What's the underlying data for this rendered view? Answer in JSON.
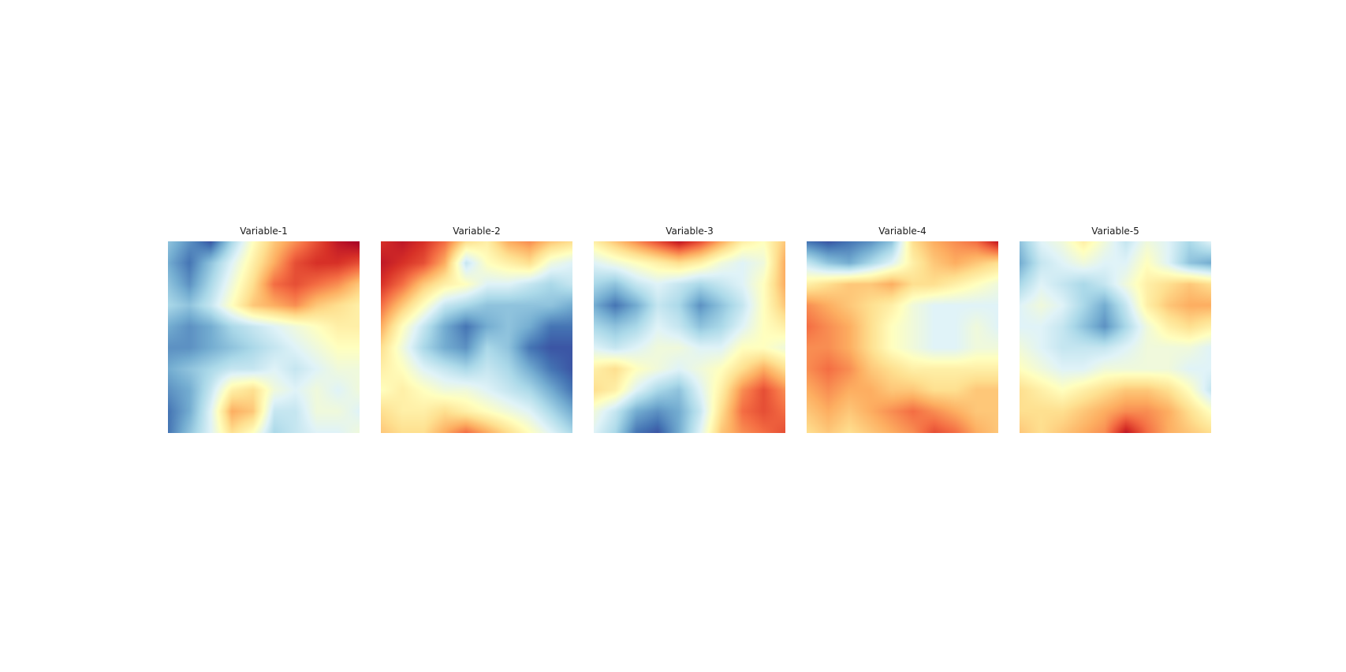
{
  "chart_data": {
    "type": "heatmap",
    "colormap": "RdYlBu_r",
    "axes_visible": false,
    "colorbar": false,
    "panels": [
      {
        "title": "Variable-1",
        "grid": [
          [
            -0.5,
            -0.7,
            -0.9,
            -0.4,
            0.0,
            0.3,
            0.5,
            0.7,
            0.9,
            1.0
          ],
          [
            -0.6,
            -0.8,
            -0.5,
            -0.2,
            0.1,
            0.4,
            0.7,
            0.8,
            0.8,
            0.7
          ],
          [
            -0.5,
            -0.7,
            -0.4,
            -0.1,
            0.2,
            0.6,
            0.7,
            0.6,
            0.5,
            0.3
          ],
          [
            -0.4,
            -0.5,
            -0.3,
            0.0,
            0.3,
            0.4,
            0.5,
            0.3,
            0.2,
            0.1
          ],
          [
            -0.6,
            -0.7,
            -0.6,
            -0.4,
            -0.3,
            -0.2,
            -0.1,
            0.0,
            0.1,
            0.1
          ],
          [
            -0.7,
            -0.7,
            -0.6,
            -0.5,
            -0.4,
            -0.3,
            -0.2,
            -0.1,
            0.0,
            0.0
          ],
          [
            -0.6,
            -0.5,
            -0.4,
            -0.3,
            -0.3,
            -0.2,
            -0.3,
            -0.2,
            -0.1,
            -0.1
          ],
          [
            -0.7,
            -0.6,
            -0.3,
            0.1,
            0.2,
            -0.1,
            -0.2,
            -0.1,
            -0.2,
            -0.1
          ],
          [
            -0.8,
            -0.6,
            -0.2,
            0.4,
            0.3,
            -0.3,
            -0.3,
            -0.1,
            -0.1,
            -0.2
          ],
          [
            -0.8,
            -0.5,
            -0.2,
            0.2,
            0.0,
            -0.4,
            -0.3,
            -0.2,
            -0.2,
            -0.1
          ]
        ]
      },
      {
        "title": "Variable-2",
        "grid": [
          [
            0.8,
            0.9,
            0.8,
            0.6,
            0.2,
            0.1,
            0.4,
            0.5,
            0.3,
            0.2
          ],
          [
            0.9,
            0.8,
            0.7,
            0.4,
            -0.3,
            0.0,
            0.1,
            0.2,
            -0.1,
            -0.2
          ],
          [
            0.8,
            0.6,
            0.3,
            0.1,
            0.0,
            -0.2,
            -0.2,
            -0.3,
            -0.4,
            -0.3
          ],
          [
            0.6,
            0.3,
            0.0,
            -0.3,
            -0.4,
            -0.5,
            -0.5,
            -0.5,
            -0.5,
            -0.6
          ],
          [
            0.4,
            0.0,
            -0.3,
            -0.6,
            -0.8,
            -0.6,
            -0.5,
            -0.6,
            -0.8,
            -0.8
          ],
          [
            0.2,
            -0.1,
            -0.4,
            -0.6,
            -0.7,
            -0.4,
            -0.5,
            -0.8,
            -0.9,
            -0.9
          ],
          [
            0.1,
            0.0,
            -0.2,
            -0.3,
            -0.4,
            -0.3,
            -0.4,
            -0.6,
            -0.8,
            -0.9
          ],
          [
            0.0,
            0.1,
            0.0,
            -0.1,
            -0.1,
            -0.2,
            -0.3,
            -0.4,
            -0.6,
            -0.8
          ],
          [
            0.2,
            0.1,
            0.1,
            0.2,
            0.1,
            0.0,
            -0.1,
            -0.2,
            -0.4,
            -0.6
          ],
          [
            0.3,
            0.2,
            0.2,
            0.4,
            0.6,
            0.4,
            0.2,
            0.0,
            -0.2,
            -0.4
          ]
        ]
      },
      {
        "title": "Variable-3",
        "grid": [
          [
            0.1,
            0.3,
            0.5,
            0.7,
            0.9,
            0.7,
            0.4,
            0.1,
            0.0,
            0.3
          ],
          [
            -0.2,
            -0.1,
            0.0,
            0.1,
            0.2,
            0.1,
            -0.1,
            -0.2,
            -0.1,
            0.4
          ],
          [
            -0.4,
            -0.5,
            -0.3,
            -0.2,
            -0.3,
            -0.4,
            -0.3,
            -0.2,
            0.0,
            0.4
          ],
          [
            -0.6,
            -0.8,
            -0.6,
            -0.3,
            -0.4,
            -0.7,
            -0.5,
            -0.3,
            0.0,
            0.3
          ],
          [
            -0.4,
            -0.5,
            -0.4,
            -0.2,
            -0.3,
            -0.5,
            -0.4,
            -0.2,
            0.0,
            0.1
          ],
          [
            -0.2,
            -0.3,
            -0.2,
            -0.1,
            -0.1,
            -0.2,
            -0.2,
            0.0,
            0.0,
            -0.1
          ],
          [
            0.1,
            0.2,
            0.0,
            -0.1,
            -0.2,
            -0.1,
            0.0,
            0.2,
            0.4,
            0.2
          ],
          [
            0.2,
            0.1,
            -0.2,
            -0.4,
            -0.5,
            -0.2,
            0.1,
            0.5,
            0.7,
            0.5
          ],
          [
            -0.1,
            -0.3,
            -0.6,
            -0.7,
            -0.6,
            -0.3,
            0.2,
            0.6,
            0.7,
            0.6
          ],
          [
            -0.2,
            -0.4,
            -0.8,
            -0.9,
            -0.6,
            -0.2,
            0.3,
            0.5,
            0.6,
            0.7
          ]
        ]
      },
      {
        "title": "Variable-4",
        "grid": [
          [
            -0.8,
            -0.9,
            -0.8,
            -0.7,
            -0.5,
            0.2,
            0.4,
            0.5,
            0.6,
            0.9
          ],
          [
            -0.3,
            -0.5,
            -0.6,
            -0.4,
            -0.2,
            0.1,
            0.3,
            0.4,
            0.3,
            0.2
          ],
          [
            0.1,
            0.2,
            0.3,
            0.3,
            0.4,
            0.2,
            0.2,
            0.1,
            0.0,
            -0.1
          ],
          [
            0.5,
            0.4,
            0.3,
            0.2,
            0.1,
            -0.1,
            -0.2,
            -0.2,
            -0.2,
            -0.2
          ],
          [
            0.6,
            0.5,
            0.4,
            0.2,
            0.0,
            -0.1,
            -0.2,
            -0.2,
            -0.1,
            -0.2
          ],
          [
            0.5,
            0.5,
            0.4,
            0.2,
            0.0,
            -0.1,
            -0.2,
            -0.2,
            -0.1,
            -0.1
          ],
          [
            0.5,
            0.6,
            0.5,
            0.3,
            0.2,
            0.1,
            0.1,
            0.1,
            0.1,
            0.1
          ],
          [
            0.4,
            0.5,
            0.4,
            0.4,
            0.3,
            0.3,
            0.2,
            0.2,
            0.3,
            0.3
          ],
          [
            0.3,
            0.4,
            0.3,
            0.4,
            0.5,
            0.6,
            0.5,
            0.4,
            0.3,
            0.3
          ],
          [
            0.2,
            0.3,
            0.2,
            0.3,
            0.4,
            0.5,
            0.7,
            0.6,
            0.4,
            0.3
          ]
        ]
      },
      {
        "title": "Variable-5",
        "grid": [
          [
            -0.5,
            -0.2,
            -0.1,
            0.1,
            -0.1,
            -0.3,
            -0.1,
            -0.2,
            -0.4,
            -0.2
          ],
          [
            -0.6,
            -0.3,
            -0.2,
            -0.1,
            -0.2,
            -0.2,
            0.0,
            -0.2,
            -0.5,
            -0.6
          ],
          [
            -0.4,
            -0.2,
            -0.3,
            -0.4,
            -0.3,
            -0.1,
            0.1,
            0.2,
            0.3,
            0.2
          ],
          [
            -0.2,
            -0.1,
            -0.2,
            -0.4,
            -0.6,
            -0.3,
            0.1,
            0.3,
            0.4,
            0.4
          ],
          [
            -0.2,
            -0.2,
            -0.3,
            -0.5,
            -0.7,
            -0.4,
            -0.1,
            0.1,
            0.2,
            0.1
          ],
          [
            -0.1,
            -0.2,
            -0.3,
            -0.3,
            -0.3,
            -0.2,
            -0.1,
            -0.1,
            -0.1,
            -0.2
          ],
          [
            0.0,
            -0.1,
            -0.2,
            -0.2,
            -0.1,
            -0.1,
            -0.1,
            -0.1,
            -0.2,
            -0.2
          ],
          [
            0.2,
            0.1,
            0.0,
            0.1,
            0.2,
            0.3,
            0.3,
            0.2,
            0.0,
            -0.3
          ],
          [
            0.2,
            0.2,
            0.2,
            0.3,
            0.4,
            0.5,
            0.5,
            0.4,
            0.2,
            0.0
          ],
          [
            0.3,
            0.2,
            0.3,
            0.4,
            0.5,
            0.9,
            0.6,
            0.4,
            0.3,
            0.2
          ]
        ]
      }
    ]
  }
}
